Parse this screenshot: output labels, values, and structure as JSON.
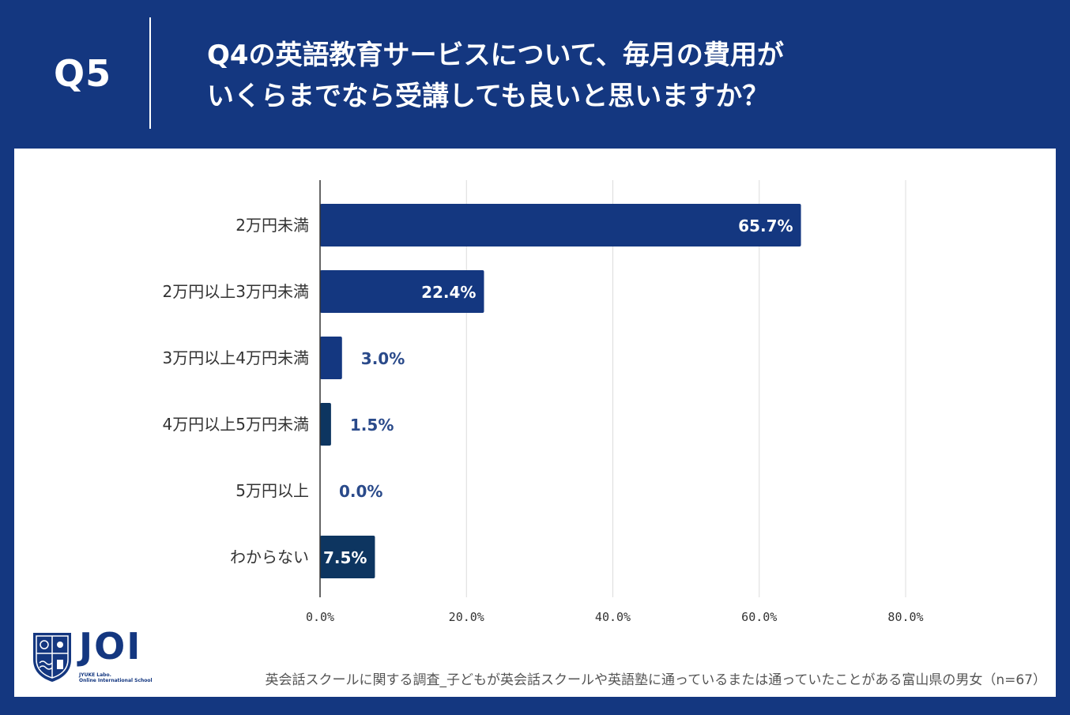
{
  "header": {
    "question_number": "Q5",
    "question_line1": "Q4の英語教育サービスについて、毎月の費用が",
    "question_line2": "いくらまでなら受講しても良いと思いますか？"
  },
  "chart_data": {
    "type": "bar",
    "orientation": "horizontal",
    "categories": [
      "2万円未満",
      "2万円以上3万円未満",
      "3万円以上4万円未満",
      "4万円以上5万円未満",
      "5万円以上",
      "わからない"
    ],
    "values": [
      65.7,
      22.4,
      3.0,
      1.5,
      0.0,
      7.5
    ],
    "data_labels": [
      "65.7%",
      "22.4%",
      "3.0%",
      "1.5%",
      "0.0%",
      "7.5%"
    ],
    "bar_colors": [
      "#143780",
      "#143780",
      "#143780",
      "#0d3560",
      "#0d3560",
      "#0d3560"
    ],
    "xlim": [
      0,
      80
    ],
    "xticks": [
      0,
      20,
      40,
      60,
      80
    ],
    "xtick_labels": [
      "0.0%",
      "20.0%",
      "40.0%",
      "60.0%",
      "80.0%"
    ],
    "grid": true,
    "title": "",
    "xlabel": "",
    "ylabel": ""
  },
  "logo": {
    "name": "JOI",
    "subtitle1": "JYUKE Labo.",
    "subtitle2": "Online International School"
  },
  "footnote": "英会話スクールに関する調査_子どもが英会話スクールや英語塾に通っているまたは通っていたことがある富山県の男女（n=67）",
  "colors": {
    "brand": "#143780",
    "grid": "#dcdcdc",
    "label_outside": "#2a4a8a"
  }
}
